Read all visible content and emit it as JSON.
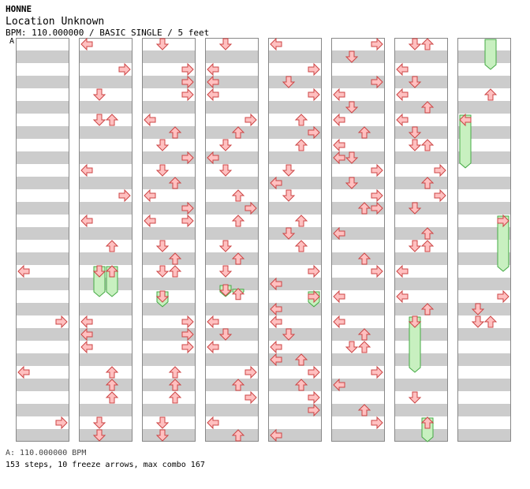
{
  "header": {
    "artist": "HONNE",
    "title": "Location Unknown",
    "info": "BPM: 110.000000 / BASIC SINGLE / 5 feet",
    "marker": "A"
  },
  "footer": {
    "bpm_line": "A: 110.000000 BPM",
    "summary": "153 steps, 10 freeze arrows, max combo 167"
  },
  "colors": {
    "stripe": "#cccccc",
    "arrow_fill": "#ffc0c0",
    "arrow_stroke": "#cc4444",
    "freeze_fill": "#c8f0c0",
    "freeze_stroke": "#44aa44",
    "column_border": "#888888"
  },
  "chart_data": {
    "type": "step-chart",
    "columns_count": 8,
    "rows_per_column": 32,
    "lanes": [
      "left",
      "down",
      "up",
      "right"
    ],
    "notes": [
      {
        "col": 0,
        "row": 18,
        "lane": "left"
      },
      {
        "col": 0,
        "row": 22,
        "lane": "right"
      },
      {
        "col": 0,
        "row": 26,
        "lane": "left"
      },
      {
        "col": 0,
        "row": 30,
        "lane": "right"
      },
      {
        "col": 1,
        "row": 0,
        "lane": "left"
      },
      {
        "col": 1,
        "row": 2,
        "lane": "right"
      },
      {
        "col": 1,
        "row": 4,
        "lane": "down"
      },
      {
        "col": 1,
        "row": 6,
        "lane": "down"
      },
      {
        "col": 1,
        "row": 6,
        "lane": "up"
      },
      {
        "col": 1,
        "row": 10,
        "lane": "left"
      },
      {
        "col": 1,
        "row": 12,
        "lane": "right"
      },
      {
        "col": 1,
        "row": 14,
        "lane": "left"
      },
      {
        "col": 1,
        "row": 16,
        "lane": "up"
      },
      {
        "col": 1,
        "row": 22,
        "lane": "left"
      },
      {
        "col": 1,
        "row": 23,
        "lane": "left"
      },
      {
        "col": 1,
        "row": 24,
        "lane": "left"
      },
      {
        "col": 1,
        "row": 26,
        "lane": "up"
      },
      {
        "col": 1,
        "row": 27,
        "lane": "up"
      },
      {
        "col": 1,
        "row": 28,
        "lane": "up"
      },
      {
        "col": 1,
        "row": 30,
        "lane": "down"
      },
      {
        "col": 1,
        "row": 31,
        "lane": "down"
      },
      {
        "col": 2,
        "row": 0,
        "lane": "down"
      },
      {
        "col": 2,
        "row": 2,
        "lane": "right"
      },
      {
        "col": 2,
        "row": 3,
        "lane": "right"
      },
      {
        "col": 2,
        "row": 4,
        "lane": "right"
      },
      {
        "col": 2,
        "row": 6,
        "lane": "left"
      },
      {
        "col": 2,
        "row": 7,
        "lane": "up"
      },
      {
        "col": 2,
        "row": 8,
        "lane": "down"
      },
      {
        "col": 2,
        "row": 9,
        "lane": "right"
      },
      {
        "col": 2,
        "row": 10,
        "lane": "down"
      },
      {
        "col": 2,
        "row": 11,
        "lane": "up"
      },
      {
        "col": 2,
        "row": 12,
        "lane": "left"
      },
      {
        "col": 2,
        "row": 13,
        "lane": "right"
      },
      {
        "col": 2,
        "row": 14,
        "lane": "left"
      },
      {
        "col": 2,
        "row": 14,
        "lane": "right"
      },
      {
        "col": 2,
        "row": 16,
        "lane": "down"
      },
      {
        "col": 2,
        "row": 17,
        "lane": "up"
      },
      {
        "col": 2,
        "row": 18,
        "lane": "down"
      },
      {
        "col": 2,
        "row": 18,
        "lane": "up"
      },
      {
        "col": 2,
        "row": 22,
        "lane": "right"
      },
      {
        "col": 2,
        "row": 23,
        "lane": "right"
      },
      {
        "col": 2,
        "row": 24,
        "lane": "right"
      },
      {
        "col": 2,
        "row": 26,
        "lane": "up"
      },
      {
        "col": 2,
        "row": 27,
        "lane": "up"
      },
      {
        "col": 2,
        "row": 28,
        "lane": "up"
      },
      {
        "col": 2,
        "row": 30,
        "lane": "down"
      },
      {
        "col": 2,
        "row": 31,
        "lane": "down"
      },
      {
        "col": 3,
        "row": 0,
        "lane": "down"
      },
      {
        "col": 3,
        "row": 2,
        "lane": "left"
      },
      {
        "col": 3,
        "row": 3,
        "lane": "left"
      },
      {
        "col": 3,
        "row": 4,
        "lane": "left"
      },
      {
        "col": 3,
        "row": 6,
        "lane": "right"
      },
      {
        "col": 3,
        "row": 7,
        "lane": "up"
      },
      {
        "col": 3,
        "row": 8,
        "lane": "down"
      },
      {
        "col": 3,
        "row": 9,
        "lane": "left"
      },
      {
        "col": 3,
        "row": 10,
        "lane": "down"
      },
      {
        "col": 3,
        "row": 12,
        "lane": "up"
      },
      {
        "col": 3,
        "row": 13,
        "lane": "right"
      },
      {
        "col": 3,
        "row": 14,
        "lane": "up"
      },
      {
        "col": 3,
        "row": 16,
        "lane": "down"
      },
      {
        "col": 3,
        "row": 17,
        "lane": "up"
      },
      {
        "col": 3,
        "row": 18,
        "lane": "down"
      },
      {
        "col": 3,
        "row": 22,
        "lane": "left"
      },
      {
        "col": 3,
        "row": 23,
        "lane": "down"
      },
      {
        "col": 3,
        "row": 24,
        "lane": "left"
      },
      {
        "col": 3,
        "row": 26,
        "lane": "right"
      },
      {
        "col": 3,
        "row": 27,
        "lane": "up"
      },
      {
        "col": 3,
        "row": 28,
        "lane": "right"
      },
      {
        "col": 3,
        "row": 30,
        "lane": "left"
      },
      {
        "col": 3,
        "row": 31,
        "lane": "up"
      },
      {
        "col": 4,
        "row": 0,
        "lane": "left"
      },
      {
        "col": 4,
        "row": 2,
        "lane": "right"
      },
      {
        "col": 4,
        "row": 3,
        "lane": "down"
      },
      {
        "col": 4,
        "row": 4,
        "lane": "right"
      },
      {
        "col": 4,
        "row": 6,
        "lane": "up"
      },
      {
        "col": 4,
        "row": 7,
        "lane": "right"
      },
      {
        "col": 4,
        "row": 8,
        "lane": "up"
      },
      {
        "col": 4,
        "row": 10,
        "lane": "down"
      },
      {
        "col": 4,
        "row": 11,
        "lane": "left"
      },
      {
        "col": 4,
        "row": 12,
        "lane": "down"
      },
      {
        "col": 4,
        "row": 14,
        "lane": "up"
      },
      {
        "col": 4,
        "row": 15,
        "lane": "down"
      },
      {
        "col": 4,
        "row": 16,
        "lane": "up"
      },
      {
        "col": 4,
        "row": 18,
        "lane": "right"
      },
      {
        "col": 4,
        "row": 19,
        "lane": "left"
      },
      {
        "col": 4,
        "row": 21,
        "lane": "left"
      },
      {
        "col": 4,
        "row": 22,
        "lane": "left"
      },
      {
        "col": 4,
        "row": 23,
        "lane": "down"
      },
      {
        "col": 4,
        "row": 24,
        "lane": "left"
      },
      {
        "col": 4,
        "row": 25,
        "lane": "left"
      },
      {
        "col": 4,
        "row": 25,
        "lane": "up"
      },
      {
        "col": 4,
        "row": 26,
        "lane": "right"
      },
      {
        "col": 4,
        "row": 27,
        "lane": "up"
      },
      {
        "col": 4,
        "row": 28,
        "lane": "right"
      },
      {
        "col": 4,
        "row": 29,
        "lane": "right"
      },
      {
        "col": 4,
        "row": 31,
        "lane": "left"
      },
      {
        "col": 5,
        "row": 0,
        "lane": "right"
      },
      {
        "col": 5,
        "row": 1,
        "lane": "down"
      },
      {
        "col": 5,
        "row": 3,
        "lane": "right"
      },
      {
        "col": 5,
        "row": 4,
        "lane": "left"
      },
      {
        "col": 5,
        "row": 5,
        "lane": "down"
      },
      {
        "col": 5,
        "row": 6,
        "lane": "left"
      },
      {
        "col": 5,
        "row": 7,
        "lane": "up"
      },
      {
        "col": 5,
        "row": 8,
        "lane": "left"
      },
      {
        "col": 5,
        "row": 9,
        "lane": "left"
      },
      {
        "col": 5,
        "row": 9,
        "lane": "down"
      },
      {
        "col": 5,
        "row": 10,
        "lane": "right"
      },
      {
        "col": 5,
        "row": 11,
        "lane": "down"
      },
      {
        "col": 5,
        "row": 12,
        "lane": "right"
      },
      {
        "col": 5,
        "row": 13,
        "lane": "up"
      },
      {
        "col": 5,
        "row": 13,
        "lane": "right"
      },
      {
        "col": 5,
        "row": 15,
        "lane": "left"
      },
      {
        "col": 5,
        "row": 17,
        "lane": "up"
      },
      {
        "col": 5,
        "row": 18,
        "lane": "right"
      },
      {
        "col": 5,
        "row": 20,
        "lane": "left"
      },
      {
        "col": 5,
        "row": 22,
        "lane": "left"
      },
      {
        "col": 5,
        "row": 23,
        "lane": "up"
      },
      {
        "col": 5,
        "row": 24,
        "lane": "down"
      },
      {
        "col": 5,
        "row": 24,
        "lane": "up"
      },
      {
        "col": 5,
        "row": 26,
        "lane": "right"
      },
      {
        "col": 5,
        "row": 27,
        "lane": "left"
      },
      {
        "col": 5,
        "row": 29,
        "lane": "up"
      },
      {
        "col": 5,
        "row": 30,
        "lane": "right"
      },
      {
        "col": 6,
        "row": 0,
        "lane": "down"
      },
      {
        "col": 6,
        "row": 0,
        "lane": "up"
      },
      {
        "col": 6,
        "row": 2,
        "lane": "left"
      },
      {
        "col": 6,
        "row": 3,
        "lane": "down"
      },
      {
        "col": 6,
        "row": 4,
        "lane": "left"
      },
      {
        "col": 6,
        "row": 5,
        "lane": "up"
      },
      {
        "col": 6,
        "row": 6,
        "lane": "left"
      },
      {
        "col": 6,
        "row": 7,
        "lane": "down"
      },
      {
        "col": 6,
        "row": 8,
        "lane": "down"
      },
      {
        "col": 6,
        "row": 8,
        "lane": "up"
      },
      {
        "col": 6,
        "row": 10,
        "lane": "right"
      },
      {
        "col": 6,
        "row": 11,
        "lane": "up"
      },
      {
        "col": 6,
        "row": 12,
        "lane": "right"
      },
      {
        "col": 6,
        "row": 13,
        "lane": "down"
      },
      {
        "col": 6,
        "row": 15,
        "lane": "up"
      },
      {
        "col": 6,
        "row": 16,
        "lane": "down"
      },
      {
        "col": 6,
        "row": 16,
        "lane": "up"
      },
      {
        "col": 6,
        "row": 18,
        "lane": "left"
      },
      {
        "col": 6,
        "row": 20,
        "lane": "left"
      },
      {
        "col": 6,
        "row": 21,
        "lane": "up"
      },
      {
        "col": 6,
        "row": 28,
        "lane": "down"
      },
      {
        "col": 7,
        "row": 4,
        "lane": "up"
      },
      {
        "col": 7,
        "row": 20,
        "lane": "right"
      },
      {
        "col": 7,
        "row": 21,
        "lane": "down"
      },
      {
        "col": 7,
        "row": 22,
        "lane": "down"
      },
      {
        "col": 7,
        "row": 22,
        "lane": "up"
      }
    ],
    "freezes": [
      {
        "col": 1,
        "lane": "down",
        "start_row": 18,
        "end_row": 20.5
      },
      {
        "col": 1,
        "lane": "up",
        "start_row": 18,
        "end_row": 20.5
      },
      {
        "col": 2,
        "lane": "down",
        "start_row": 20,
        "end_row": 21.3
      },
      {
        "col": 3,
        "lane": "down",
        "start_row": 19.5,
        "end_row": 20.5
      },
      {
        "col": 3,
        "lane": "up",
        "start_row": 19.8,
        "end_row": 20.5
      },
      {
        "col": 4,
        "lane": "right",
        "start_row": 20,
        "end_row": 21.3
      },
      {
        "col": 6,
        "lane": "down",
        "start_row": 22,
        "end_row": 26.5
      },
      {
        "col": 6,
        "lane": "up",
        "start_row": 30,
        "end_row": 32
      },
      {
        "col": 7,
        "lane": "up",
        "start_row": -0.3,
        "end_row": 2.5
      },
      {
        "col": 7,
        "lane": "left",
        "start_row": 6,
        "end_row": 10.3
      },
      {
        "col": 7,
        "lane": "right",
        "start_row": 14,
        "end_row": 18.5
      }
    ]
  }
}
